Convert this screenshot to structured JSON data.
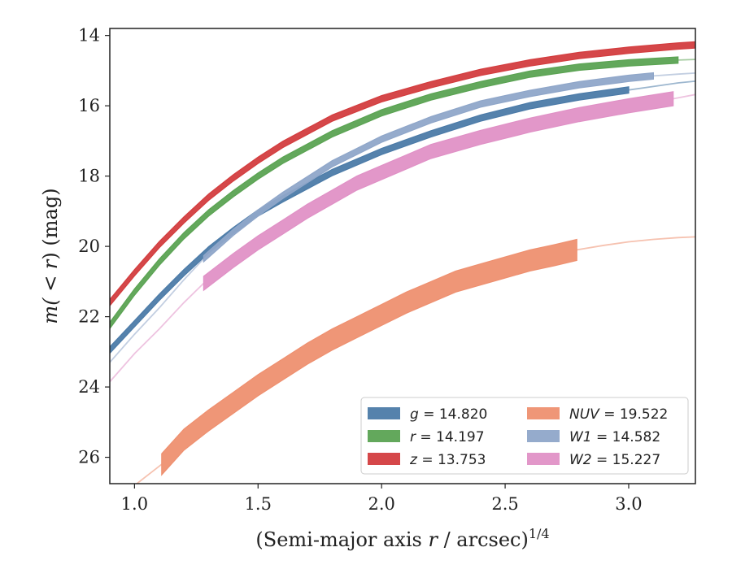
{
  "chart_data": {
    "type": "line",
    "title": "",
    "xlabel_prefix": "(Semi-major axis ",
    "xlabel_var": "r",
    "xlabel_suffix": " / arcsec)",
    "xlabel_exp": "1/4",
    "ylabel_prefix": "m(",
    "ylabel_mid": " < r",
    "ylabel_suffix": ") (mag)",
    "xlim": [
      0.9,
      3.27
    ],
    "ylim": [
      26.75,
      13.8
    ],
    "y_inverted": true,
    "x_ticks": [
      "1.0",
      "1.5",
      "2.0",
      "2.5",
      "3.0"
    ],
    "y_ticks": [
      "14",
      "16",
      "18",
      "20",
      "22",
      "24",
      "26"
    ],
    "grid": false,
    "legend_position": "bottom-right",
    "legend_columns": 2,
    "series": [
      {
        "name": "g",
        "label": "g = 14.820",
        "color": "#4c7ba8",
        "band_x": [
          0.9,
          1.0,
          1.1,
          1.2,
          1.3,
          1.4,
          1.5,
          1.6,
          1.8,
          2.0,
          2.2,
          2.4,
          2.6,
          2.8,
          3.0
        ],
        "band_y": [
          22.95,
          22.2,
          21.45,
          20.75,
          20.1,
          19.55,
          19.05,
          18.65,
          17.9,
          17.3,
          16.8,
          16.35,
          16.0,
          15.75,
          15.55
        ],
        "band_w": 0.09,
        "ext_x": [
          3.0,
          3.1,
          3.2,
          3.27
        ],
        "ext_y": [
          15.55,
          15.45,
          15.35,
          15.3
        ]
      },
      {
        "name": "r",
        "label": "r = 14.197",
        "color": "#5ba353",
        "band_x": [
          0.9,
          1.0,
          1.1,
          1.2,
          1.3,
          1.4,
          1.5,
          1.6,
          1.8,
          2.0,
          2.2,
          2.4,
          2.6,
          2.8,
          3.0,
          3.2
        ],
        "band_y": [
          22.25,
          21.3,
          20.45,
          19.7,
          19.05,
          18.5,
          18.0,
          17.55,
          16.8,
          16.2,
          15.75,
          15.4,
          15.1,
          14.9,
          14.78,
          14.7
        ],
        "band_w": 0.09,
        "ext_x": [
          3.2,
          3.27
        ],
        "ext_y": [
          14.7,
          14.68
        ]
      },
      {
        "name": "z",
        "label": "z = 13.753",
        "color": "#d33d3f",
        "band_x": [
          0.9,
          1.0,
          1.1,
          1.2,
          1.3,
          1.4,
          1.5,
          1.6,
          1.8,
          2.0,
          2.2,
          2.4,
          2.6,
          2.8,
          3.0,
          3.2,
          3.27
        ],
        "band_y": [
          21.6,
          20.75,
          19.95,
          19.25,
          18.6,
          18.05,
          17.55,
          17.1,
          16.35,
          15.8,
          15.4,
          15.05,
          14.78,
          14.57,
          14.42,
          14.3,
          14.27
        ],
        "band_w": 0.09,
        "ext_x": [],
        "ext_y": []
      },
      {
        "name": "NUV",
        "label": "NUV = 19.522",
        "color": "#ee9070",
        "band_x": [
          1.11,
          1.2,
          1.3,
          1.4,
          1.5,
          1.6,
          1.7,
          1.8,
          1.9,
          2.0,
          2.1,
          2.2,
          2.3,
          2.4,
          2.5,
          2.6,
          2.7,
          2.79
        ],
        "band_y": [
          26.2,
          25.5,
          24.95,
          24.45,
          23.95,
          23.5,
          23.05,
          22.65,
          22.3,
          21.95,
          21.6,
          21.3,
          21.0,
          20.8,
          20.6,
          20.4,
          20.25,
          20.1
        ],
        "band_w": 0.3,
        "ext_x": [
          0.9,
          1.0,
          1.11
        ],
        "ext_y": [
          27.6,
          26.8,
          26.2
        ],
        "ext2_x": [
          2.79,
          2.9,
          3.0,
          3.1,
          3.2,
          3.27
        ],
        "ext2_y": [
          20.1,
          19.97,
          19.87,
          19.8,
          19.75,
          19.73
        ]
      },
      {
        "name": "W1",
        "label": "W1 = 14.582",
        "color": "#8fa6c9",
        "band_x": [
          1.28,
          1.4,
          1.5,
          1.6,
          1.7,
          1.8,
          1.9,
          2.0,
          2.2,
          2.4,
          2.6,
          2.8,
          3.0,
          3.1
        ],
        "band_y": [
          20.35,
          19.6,
          19.05,
          18.55,
          18.1,
          17.65,
          17.3,
          16.95,
          16.4,
          15.95,
          15.65,
          15.4,
          15.22,
          15.15
        ],
        "band_w": 0.09,
        "ext_x": [
          0.9,
          1.0,
          1.1,
          1.2,
          1.28
        ],
        "ext_y": [
          23.3,
          22.5,
          21.75,
          20.95,
          20.35
        ],
        "ext2_x": [
          3.1,
          3.2,
          3.27
        ],
        "ext2_y": [
          15.15,
          15.1,
          15.07
        ]
      },
      {
        "name": "W2",
        "label": "W2 = 15.227",
        "color": "#e091c6",
        "band_x": [
          1.28,
          1.4,
          1.5,
          1.6,
          1.7,
          1.8,
          1.9,
          2.0,
          2.2,
          2.4,
          2.6,
          2.8,
          3.0,
          3.18
        ],
        "band_y": [
          21.05,
          20.4,
          19.9,
          19.45,
          19.0,
          18.6,
          18.2,
          17.9,
          17.3,
          16.9,
          16.55,
          16.25,
          16.0,
          15.8
        ],
        "band_w": 0.2,
        "ext_x": [
          0.9,
          1.0,
          1.1,
          1.2,
          1.28
        ],
        "ext_y": [
          23.85,
          23.05,
          22.35,
          21.6,
          21.05
        ],
        "ext2_x": [
          3.18,
          3.27
        ],
        "ext2_y": [
          15.8,
          15.68
        ]
      }
    ]
  }
}
